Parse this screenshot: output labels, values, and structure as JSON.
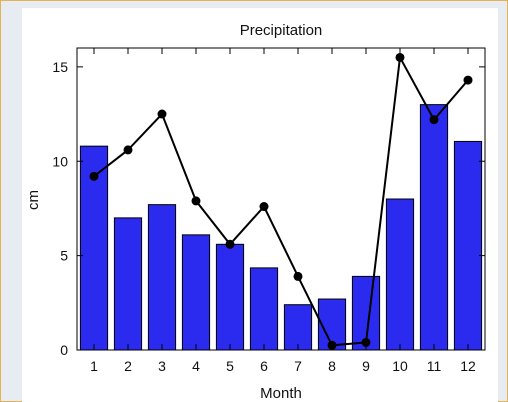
{
  "chart_data": {
    "type": "bar",
    "title": "Precipitation",
    "xlabel": "Month",
    "ylabel": "cm",
    "categories": [
      "1",
      "2",
      "3",
      "4",
      "5",
      "6",
      "7",
      "8",
      "9",
      "10",
      "11",
      "12"
    ],
    "ylim": [
      0,
      16
    ],
    "yticks": [
      "0",
      "5",
      "10",
      "15"
    ],
    "series": [
      {
        "type": "bar",
        "values": [
          10.8,
          7.0,
          7.7,
          6.1,
          5.6,
          4.35,
          2.4,
          2.7,
          3.9,
          8.0,
          13.0,
          11.05
        ],
        "color": "#2b2bf0"
      },
      {
        "type": "line",
        "values": [
          9.2,
          10.6,
          12.5,
          7.9,
          5.6,
          7.6,
          3.9,
          0.25,
          0.4,
          15.5,
          12.2,
          14.3
        ],
        "color": "#000000"
      }
    ],
    "grid": false,
    "legend": "none"
  }
}
